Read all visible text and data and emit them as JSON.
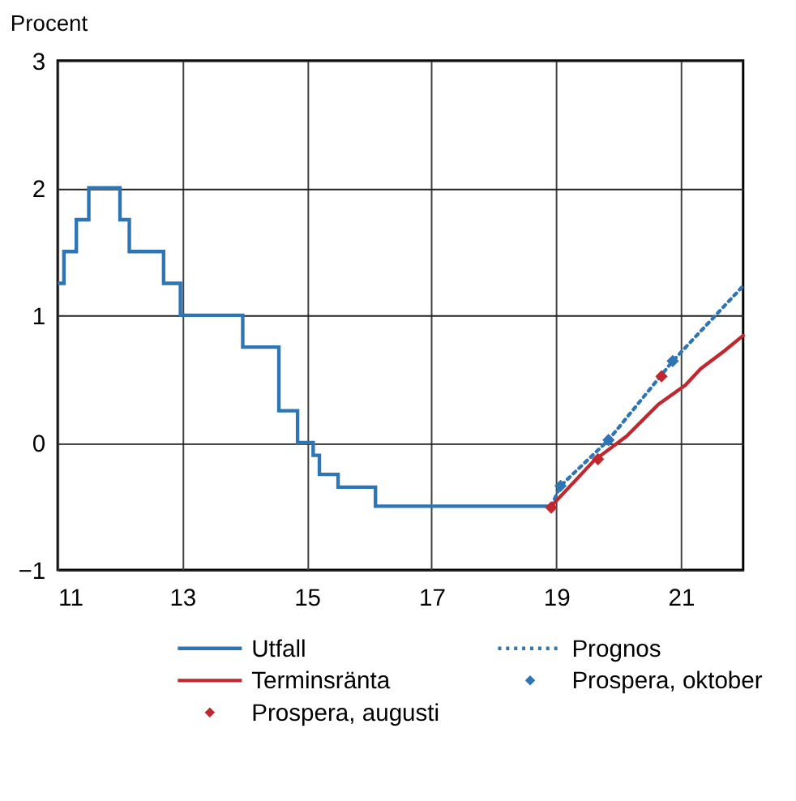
{
  "chart_data": {
    "type": "line",
    "ylabel": "Procent",
    "xlim": [
      11,
      22
    ],
    "xticks": [
      11,
      13,
      15,
      17,
      19,
      21
    ],
    "ylim": [
      -1,
      3
    ],
    "yticks": [
      -1,
      0,
      1,
      2,
      3
    ],
    "grid": true,
    "legend": "bottom",
    "series": [
      {
        "name": "Utfall",
        "type": "step",
        "color": "#2e75b6",
        "line_style": "solid",
        "x": [
          11.0,
          11.1,
          11.3,
          11.5,
          12.0,
          12.15,
          12.7,
          12.97,
          13.97,
          14.55,
          14.85,
          15.1,
          15.2,
          15.5,
          16.1,
          18.87
        ],
        "values": [
          1.25,
          1.5,
          1.75,
          2.0,
          1.75,
          1.5,
          1.25,
          1.0,
          0.75,
          0.25,
          0.0,
          -0.1,
          -0.25,
          -0.35,
          -0.5,
          -0.5
        ]
      },
      {
        "name": "Prognos",
        "color": "#2e75b6",
        "line_style": "dotted",
        "x": [
          18.92,
          19.07,
          19.84,
          20.87,
          22.0
        ],
        "values": [
          -0.5,
          -0.34,
          0.02,
          0.64,
          1.23
        ]
      },
      {
        "name": "Terminsränta",
        "color": "#c0282f",
        "line_style": "solid",
        "x": [
          18.92,
          19.61,
          20.13,
          20.64,
          21.07,
          21.32,
          21.7,
          22.0
        ],
        "values": [
          -0.5,
          -0.14,
          0.05,
          0.3,
          0.45,
          0.58,
          0.72,
          0.84
        ]
      },
      {
        "name": "Prospera, oktober",
        "type": "scatter",
        "marker": "diamond",
        "color": "#2e75b6",
        "x": [
          19.07,
          19.84,
          20.87
        ],
        "values": [
          -0.34,
          0.02,
          0.64
        ]
      },
      {
        "name": "Prospera, augusti",
        "type": "scatter",
        "marker": "diamond",
        "color": "#c0282f",
        "x": [
          18.92,
          19.67,
          20.69
        ],
        "values": [
          -0.51,
          -0.13,
          0.52
        ]
      }
    ]
  }
}
